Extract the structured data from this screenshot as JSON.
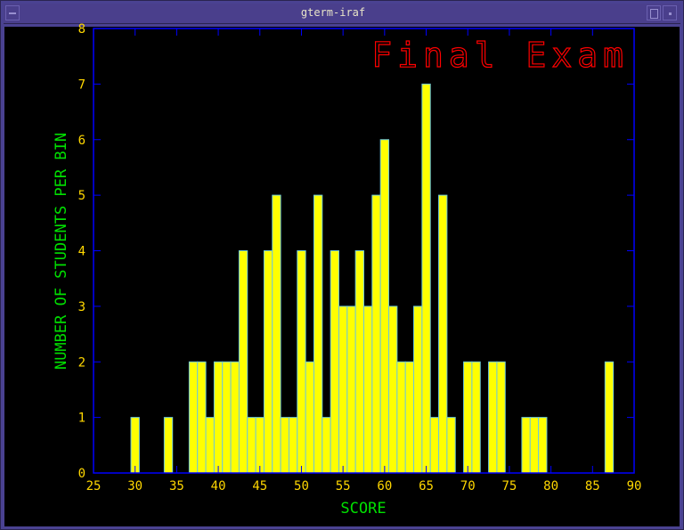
{
  "window": {
    "title": "gterm-iraf"
  },
  "colors": {
    "bar_fill": "#ffff00",
    "bar_edge": "#6ec8d8",
    "axes": "#0000ff",
    "tick_labels": "#ffd700",
    "axis_labels": "#00e000",
    "title": "#ff0000"
  },
  "chart_data": {
    "type": "bar",
    "title": "Final Exam",
    "xlabel": "SCORE",
    "ylabel": "NUMBER OF STUDENTS PER BIN",
    "xlim": [
      25,
      90
    ],
    "ylim": [
      0,
      8
    ],
    "xticks": [
      25,
      30,
      35,
      40,
      45,
      50,
      55,
      60,
      65,
      70,
      75,
      80,
      85,
      90
    ],
    "yticks": [
      0,
      1,
      2,
      3,
      4,
      5,
      6,
      7,
      8
    ],
    "bin_width": 1,
    "grid": false,
    "x": [
      29,
      30,
      31,
      32,
      33,
      34,
      35,
      36,
      37,
      38,
      39,
      40,
      41,
      42,
      43,
      44,
      45,
      46,
      47,
      48,
      49,
      50,
      51,
      52,
      53,
      54,
      55,
      56,
      57,
      58,
      59,
      60,
      61,
      62,
      63,
      64,
      65,
      66,
      67,
      68,
      69,
      70,
      71,
      72,
      73,
      74,
      75,
      76,
      77,
      78,
      79,
      80,
      81,
      82,
      83,
      84,
      85,
      86,
      87
    ],
    "values": [
      0,
      1,
      0,
      0,
      0,
      1,
      0,
      0,
      2,
      2,
      1,
      2,
      2,
      2,
      4,
      1,
      1,
      4,
      5,
      1,
      1,
      4,
      2,
      5,
      1,
      4,
      3,
      3,
      4,
      3,
      5,
      6,
      3,
      2,
      2,
      3,
      7,
      1,
      5,
      1,
      0,
      2,
      2,
      0,
      2,
      2,
      0,
      0,
      1,
      1,
      1,
      0,
      0,
      0,
      0,
      0,
      0,
      0,
      2
    ]
  }
}
